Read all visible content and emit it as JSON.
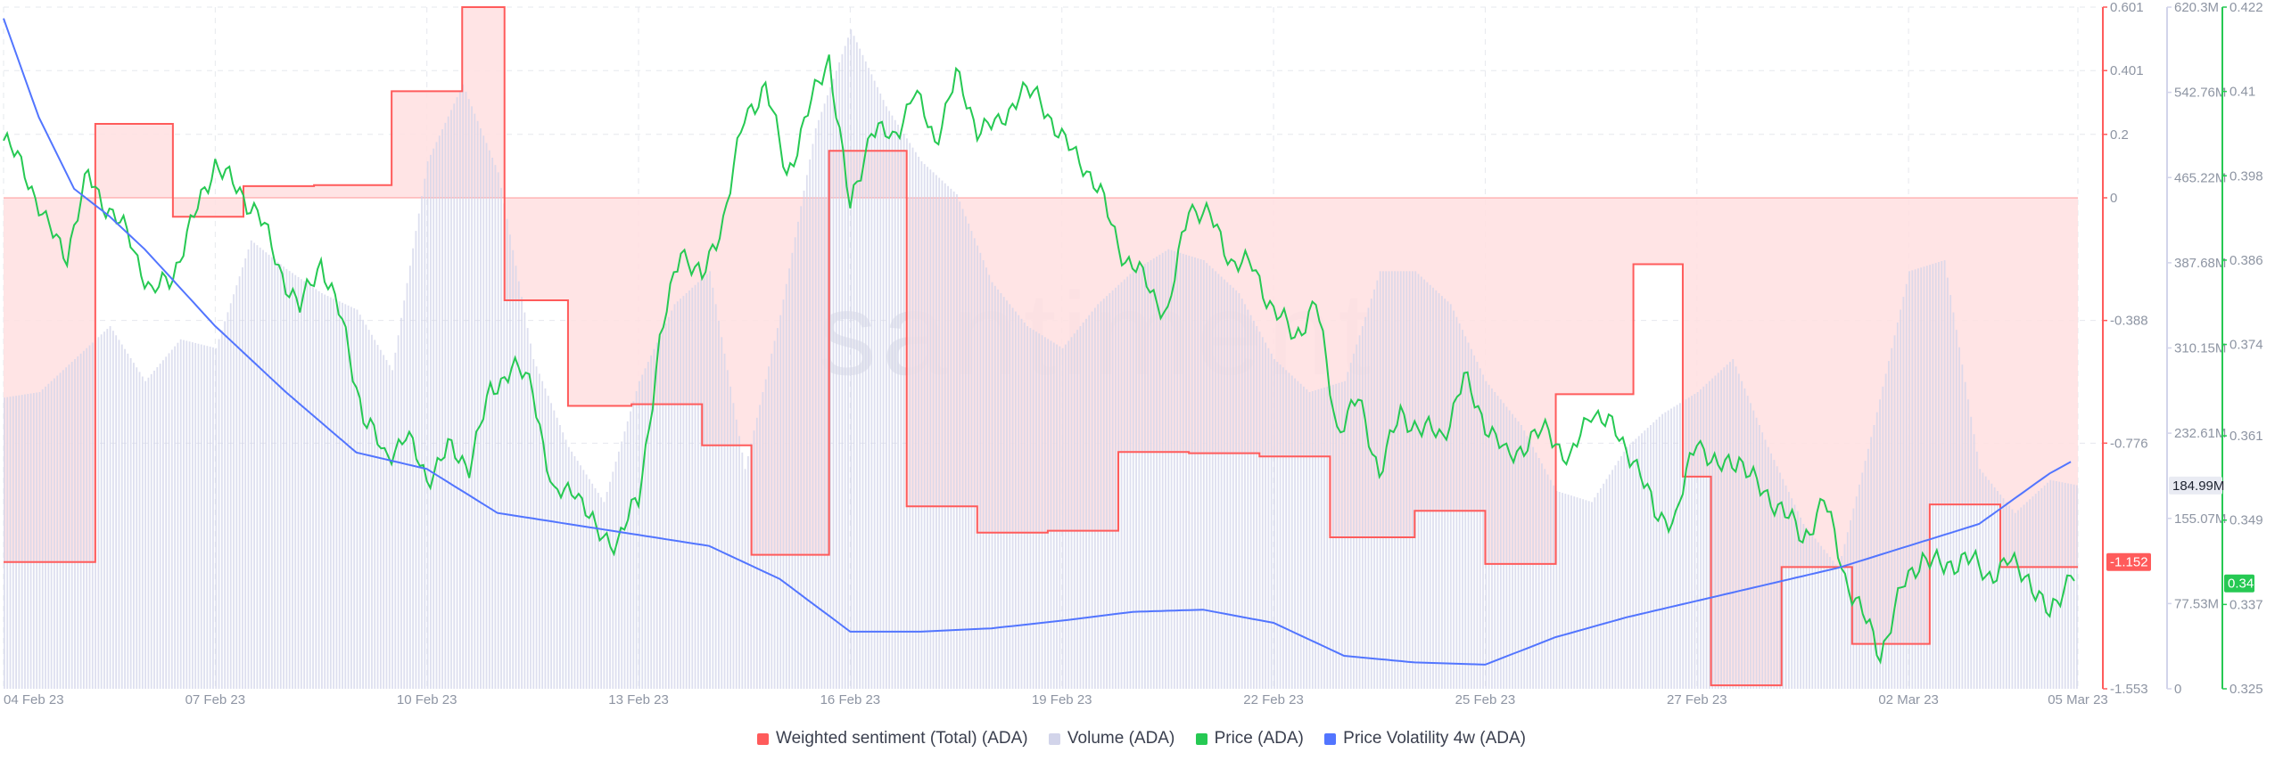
{
  "watermark": "santiment",
  "colors": {
    "sentiment": "#ff5b5b",
    "sentiment_fill": "#ffdfe0",
    "volume": "#d2d4ea",
    "price": "#26c953",
    "volatility": "#5275ff",
    "grid": "#e6e8ee",
    "axis_text": "#8e95a3"
  },
  "legend": [
    {
      "label": "Weighted sentiment (Total) (ADA)",
      "color": "#ff5b5b"
    },
    {
      "label": "Volume (ADA)",
      "color": "#d2d4ea"
    },
    {
      "label": "Price (ADA)",
      "color": "#26c953"
    },
    {
      "label": "Price Volatility 4w (ADA)",
      "color": "#5275ff"
    }
  ],
  "chart_data": {
    "type": "line",
    "grid": true,
    "legend_position": "bottom",
    "x": {
      "start": "2023-02-04",
      "end": "2023-03-05",
      "ticks": [
        "04 Feb 23",
        "07 Feb 23",
        "10 Feb 23",
        "13 Feb 23",
        "16 Feb 23",
        "19 Feb 23",
        "22 Feb 23",
        "25 Feb 23",
        "27 Feb 23",
        "02 Mar 23",
        "05 Mar 23"
      ]
    },
    "axes": {
      "sentiment": {
        "ylim": [
          -1.553,
          0.601
        ],
        "ticks": [
          "0.601",
          "0.401",
          "0.2",
          "0",
          "-0.388",
          "-0.776",
          "-1.553"
        ]
      },
      "volume": {
        "ylim": [
          0,
          620.3
        ],
        "ticks": [
          "620.3M",
          "542.76M",
          "465.22M",
          "387.68M",
          "310.15M",
          "232.61M",
          "155.07M",
          "77.53M",
          "0"
        ]
      },
      "price": {
        "ylim": [
          0.325,
          0.422
        ],
        "ticks": [
          "0.422",
          "0.41",
          "0.398",
          "0.386",
          "0.374",
          "0.361",
          "0.349",
          "0.337",
          "0.325"
        ]
      }
    },
    "badges": {
      "sentiment": "-1.152",
      "volume": "184.99M",
      "price": "0.34"
    },
    "series": [
      {
        "name": "Weighted sentiment (Total) (ADA)",
        "axis": "sentiment",
        "style": "step-area",
        "t": [
          0,
          1.3,
          2.4,
          3.4,
          4.4,
          5.5,
          6.5,
          7.1,
          8.0,
          8.9,
          9.9,
          10.6,
          11.7,
          12.8,
          13.8,
          14.8,
          15.8,
          16.8,
          17.8,
          18.8,
          20.0,
          21.0,
          22.0,
          23.1,
          23.8,
          24.2,
          25.2,
          26.2,
          27.3,
          28.3,
          29.4
        ],
        "values": [
          -1.152,
          0.233,
          -0.06,
          0.037,
          0.04,
          0.336,
          0.601,
          -0.324,
          -0.658,
          -0.653,
          -0.783,
          -1.129,
          0.148,
          -0.976,
          -1.059,
          -1.053,
          -0.804,
          -0.808,
          -0.818,
          -1.074,
          -0.99,
          -1.158,
          -0.621,
          -0.21,
          -0.882,
          -1.542,
          -1.168,
          -1.411,
          -0.97,
          -1.168,
          -1.168
        ]
      },
      {
        "name": "Volume (ADA)",
        "axis": "volume",
        "style": "bars",
        "t": [
          0,
          0.5,
          1,
          1.5,
          2,
          2.5,
          3,
          3.5,
          4,
          4.5,
          5,
          5.5,
          6,
          6.5,
          7,
          7.5,
          8,
          8.5,
          9,
          9.5,
          10,
          10.5,
          11,
          11.5,
          12,
          12.5,
          13,
          13.5,
          14,
          14.5,
          15,
          15.5,
          16,
          16.5,
          17,
          17.5,
          18,
          18.5,
          19,
          19.5,
          20,
          20.5,
          21,
          21.5,
          22,
          22.5,
          23,
          23.5,
          24,
          24.5,
          25,
          25.5,
          26,
          26.5,
          27,
          27.5,
          28,
          28.5,
          29,
          29.4
        ],
        "values": [
          265,
          270,
          300,
          330,
          280,
          318,
          310,
          408,
          382,
          360,
          345,
          290,
          480,
          550,
          470,
          300,
          220,
          170,
          280,
          350,
          380,
          200,
          340,
          510,
          600,
          530,
          480,
          450,
          370,
          330,
          310,
          350,
          380,
          400,
          390,
          360,
          300,
          270,
          280,
          380,
          380,
          350,
          280,
          240,
          180,
          170,
          220,
          250,
          270,
          300,
          220,
          150,
          110,
          240,
          380,
          390,
          200,
          160,
          190,
          185
        ]
      },
      {
        "name": "Price (ADA)",
        "axis": "price",
        "style": "line",
        "t": [
          0,
          0.3,
          0.6,
          0.9,
          1.2,
          1.5,
          1.8,
          2.1,
          2.4,
          2.7,
          3.0,
          3.3,
          3.6,
          3.9,
          4.2,
          4.5,
          4.8,
          5.1,
          5.4,
          5.7,
          6.0,
          6.3,
          6.6,
          6.9,
          7.2,
          7.5,
          7.8,
          8.1,
          8.4,
          8.7,
          9.0,
          9.3,
          9.6,
          9.9,
          10.2,
          10.5,
          10.8,
          11.1,
          11.4,
          11.7,
          12.0,
          12.3,
          12.6,
          12.9,
          13.2,
          13.5,
          13.8,
          14.1,
          14.4,
          14.7,
          15.0,
          15.3,
          15.6,
          15.9,
          16.2,
          16.5,
          16.8,
          17.1,
          17.4,
          17.7,
          18.0,
          18.3,
          18.6,
          18.9,
          19.2,
          19.5,
          19.8,
          20.1,
          20.4,
          20.7,
          21.0,
          21.3,
          21.6,
          21.9,
          22.2,
          22.5,
          22.8,
          23.1,
          23.4,
          23.7,
          24.0,
          24.3,
          24.6,
          24.9,
          25.2,
          25.5,
          25.8,
          26.1,
          26.6,
          26.9,
          27.2,
          27.5,
          27.8,
          28.1,
          28.4,
          28.7,
          29.0,
          29.3,
          29.4
        ],
        "values": [
          0.403,
          0.399,
          0.391,
          0.387,
          0.398,
          0.393,
          0.389,
          0.381,
          0.384,
          0.392,
          0.4,
          0.396,
          0.393,
          0.385,
          0.379,
          0.386,
          0.377,
          0.364,
          0.358,
          0.361,
          0.355,
          0.359,
          0.357,
          0.367,
          0.371,
          0.368,
          0.352,
          0.354,
          0.347,
          0.346,
          0.352,
          0.374,
          0.388,
          0.383,
          0.392,
          0.406,
          0.411,
          0.398,
          0.407,
          0.415,
          0.393,
          0.405,
          0.403,
          0.41,
          0.403,
          0.412,
          0.405,
          0.405,
          0.41,
          0.409,
          0.403,
          0.4,
          0.394,
          0.386,
          0.383,
          0.378,
          0.394,
          0.392,
          0.386,
          0.385,
          0.379,
          0.375,
          0.38,
          0.362,
          0.366,
          0.356,
          0.364,
          0.362,
          0.361,
          0.369,
          0.363,
          0.358,
          0.36,
          0.362,
          0.357,
          0.365,
          0.362,
          0.358,
          0.35,
          0.349,
          0.361,
          0.356,
          0.358,
          0.353,
          0.351,
          0.346,
          0.352,
          0.341,
          0.33,
          0.339,
          0.344,
          0.342,
          0.344,
          0.341,
          0.343,
          0.341,
          0.335,
          0.342,
          0.341
        ]
      },
      {
        "name": "Price Volatility 4w (ADA)",
        "axis": "volume",
        "style": "line",
        "t": [
          0,
          0.5,
          1,
          1.5,
          2,
          3,
          4,
          5,
          6,
          7,
          8,
          9,
          10,
          11,
          12,
          13,
          14,
          15,
          16,
          17,
          18,
          19,
          20,
          21,
          22,
          23,
          24,
          25,
          26,
          27,
          28,
          29,
          29.4
        ],
        "values": [
          610,
          520,
          455,
          430,
          400,
          330,
          270,
          215,
          200,
          160,
          150,
          140,
          130,
          100,
          52,
          52,
          55,
          62,
          70,
          72,
          60,
          30,
          24,
          22,
          47,
          65,
          80,
          95,
          110,
          130,
          150,
          196,
          210
        ]
      }
    ]
  }
}
